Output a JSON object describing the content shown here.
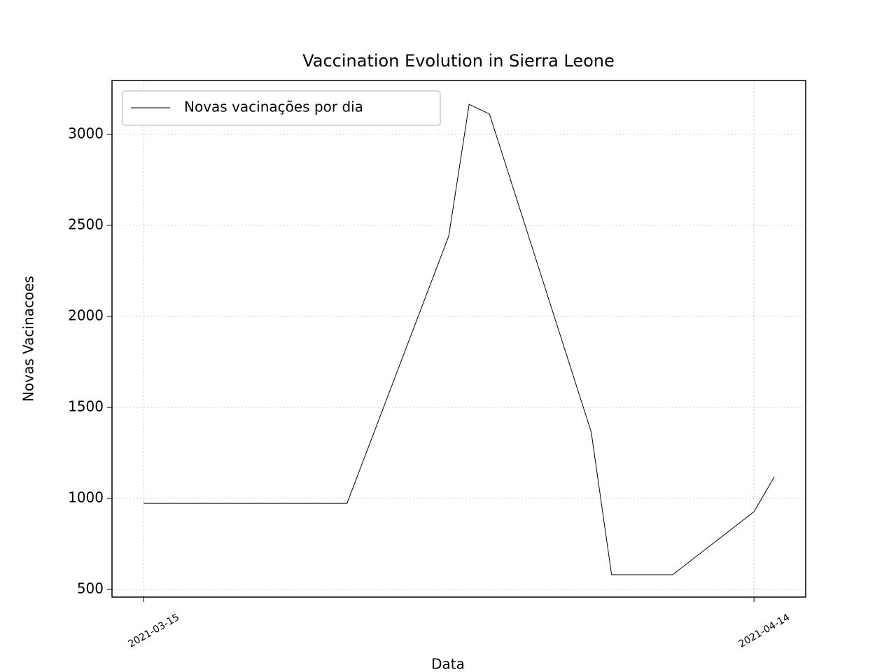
{
  "chart_data": {
    "type": "line",
    "title": "Vaccination Evolution in Sierra Leone",
    "xlabel": "Data",
    "ylabel": "Novas Vacinacoes",
    "x": [
      "2021-03-15",
      "2021-03-25",
      "2021-03-30",
      "2021-03-31",
      "2021-04-01",
      "2021-04-06",
      "2021-04-07",
      "2021-04-10",
      "2021-04-14",
      "2021-04-15"
    ],
    "series": [
      {
        "name": "Novas vacinações por dia",
        "color": "#000000",
        "values": [
          973,
          973,
          2442,
          3165,
          3112,
          1365,
          581,
          581,
          927,
          1119
        ]
      }
    ],
    "xlim": [
      "2021-03-13T10:48",
      "2021-04-16T12:58"
    ],
    "xticks": [
      "2021-03-15",
      "2021-04-14"
    ],
    "ylim": [
      458,
      3296
    ],
    "yticks": [
      500,
      1000,
      1500,
      2000,
      2500,
      3000
    ],
    "grid": true,
    "legend": "upper left"
  }
}
